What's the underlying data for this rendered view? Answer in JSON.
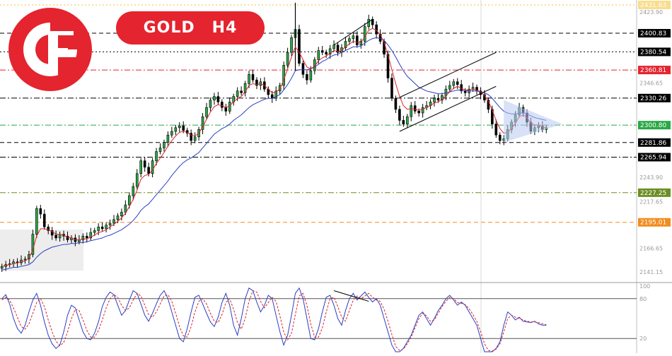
{
  "header": {
    "symbol": "GOLD",
    "timeframe": "H4"
  },
  "brand": {
    "icon": "capital-f-logo-icon",
    "color": "#e4242e"
  },
  "chart_data": {
    "type": "candlestick",
    "instrument": "GOLD",
    "timeframe": "H4",
    "y_axis_ticks": [
      "2423.90",
      "2346.65",
      "2243.90",
      "2217.65",
      "2166.65",
      "2141.15"
    ],
    "levels": [
      {
        "value": "2431.63",
        "color": "#f2c12e",
        "style": "dotted"
      },
      {
        "value": "2400.83",
        "color": "#000000",
        "style": "dashed"
      },
      {
        "value": "2380.54",
        "color": "#000000",
        "style": "dotted"
      },
      {
        "value": "2360.81",
        "color": "#e4242e",
        "style": "dash-dot"
      },
      {
        "value": "2330.26",
        "color": "#000000",
        "style": "dash-dot"
      },
      {
        "value": "2300.80",
        "color": "#2aa845",
        "style": "dash-dot"
      },
      {
        "value": "2281.86",
        "color": "#000000",
        "style": "dashed"
      },
      {
        "value": "2265.94",
        "color": "#000000",
        "style": "dash-dot"
      },
      {
        "value": "2227.25",
        "color": "#6b8e23",
        "style": "dash-dot"
      },
      {
        "value": "2195.01",
        "color": "#f28c1e",
        "style": "dashed"
      }
    ],
    "y_range": [
      2131,
      2437
    ],
    "closes": [
      2147,
      2149,
      2150,
      2152,
      2151,
      2154,
      2155,
      2160,
      2182,
      2210,
      2204,
      2190,
      2186,
      2181,
      2178,
      2182,
      2180,
      2176,
      2178,
      2174,
      2176,
      2180,
      2178,
      2184,
      2186,
      2190,
      2188,
      2192,
      2194,
      2198,
      2202,
      2206,
      2214,
      2224,
      2234,
      2248,
      2262,
      2255,
      2248,
      2262,
      2272,
      2276,
      2282,
      2290,
      2294,
      2298,
      2300,
      2295,
      2292,
      2284,
      2288,
      2296,
      2310,
      2320,
      2328,
      2332,
      2326,
      2320,
      2316,
      2326,
      2332,
      2338,
      2336,
      2346,
      2356,
      2350,
      2344,
      2348,
      2340,
      2334,
      2330,
      2338,
      2344,
      2366,
      2380,
      2396,
      2405,
      2368,
      2356,
      2350,
      2360,
      2372,
      2382,
      2380,
      2378,
      2384,
      2388,
      2380,
      2385,
      2392,
      2395,
      2398,
      2388,
      2392,
      2408,
      2416,
      2410,
      2400,
      2392,
      2378,
      2352,
      2330,
      2318,
      2306,
      2302,
      2310,
      2322,
      2316,
      2314,
      2320,
      2322,
      2326,
      2330,
      2328,
      2333,
      2340,
      2344,
      2348,
      2345,
      2338,
      2336,
      2340,
      2342,
      2338,
      2334,
      2328,
      2318,
      2302,
      2290,
      2284,
      2286,
      2296,
      2304,
      2312,
      2320,
      2314,
      2304,
      2294,
      2298,
      2300,
      2296,
      2298
    ],
    "ma_fast": [
      2147,
      2148,
      2149,
      2150,
      2151,
      2152,
      2153,
      2156,
      2165,
      2180,
      2188,
      2188,
      2187,
      2185,
      2182,
      2182,
      2181,
      2179,
      2178,
      2176,
      2176,
      2177,
      2177,
      2179,
      2181,
      2184,
      2185,
      2187,
      2190,
      2193,
      2196,
      2200,
      2205,
      2212,
      2220,
      2230,
      2242,
      2246,
      2247,
      2252,
      2259,
      2265,
      2271,
      2278,
      2284,
      2289,
      2293,
      2294,
      2293,
      2290,
      2289,
      2292,
      2299,
      2307,
      2315,
      2321,
      2323,
      2322,
      2320,
      2322,
      2326,
      2330,
      2332,
      2337,
      2344,
      2346,
      2345,
      2346,
      2344,
      2340,
      2336,
      2337,
      2340,
      2350,
      2362,
      2375,
      2386,
      2380,
      2372,
      2364,
      2362,
      2365,
      2371,
      2374,
      2376,
      2379,
      2382,
      2381,
      2382,
      2386,
      2389,
      2392,
      2391,
      2391,
      2397,
      2404,
      2406,
      2404,
      2399,
      2391,
      2377,
      2361,
      2346,
      2332,
      2322,
      2318,
      2319,
      2318,
      2317,
      2318,
      2320,
      2322,
      2325,
      2326,
      2329,
      2333,
      2337,
      2341,
      2343,
      2341,
      2339,
      2339,
      2340,
      2339,
      2337,
      2333,
      2327,
      2317,
      2306,
      2297,
      2292,
      2293,
      2297,
      2303,
      2310,
      2312,
      2309,
      2303,
      2301,
      2301,
      2299,
      2298
    ],
    "ma_slow": [
      2143,
      2144,
      2145,
      2146,
      2146,
      2147,
      2148,
      2149,
      2152,
      2157,
      2161,
      2164,
      2166,
      2168,
      2169,
      2170,
      2171,
      2171,
      2172,
      2172,
      2173,
      2173,
      2174,
      2175,
      2176,
      2177,
      2178,
      2180,
      2181,
      2183,
      2185,
      2187,
      2190,
      2193,
      2197,
      2202,
      2208,
      2212,
      2215,
      2220,
      2225,
      2230,
      2235,
      2240,
      2246,
      2251,
      2256,
      2260,
      2263,
      2265,
      2268,
      2271,
      2276,
      2281,
      2286,
      2291,
      2294,
      2297,
      2299,
      2302,
      2306,
      2309,
      2312,
      2316,
      2320,
      2323,
      2325,
      2327,
      2329,
      2330,
      2330,
      2332,
      2334,
      2339,
      2345,
      2352,
      2360,
      2361,
      2361,
      2361,
      2362,
      2364,
      2367,
      2370,
      2372,
      2375,
      2377,
      2378,
      2380,
      2382,
      2384,
      2386,
      2386,
      2387,
      2390,
      2393,
      2395,
      2396,
      2395,
      2393,
      2388,
      2382,
      2375,
      2367,
      2360,
      2354,
      2350,
      2346,
      2342,
      2340,
      2338,
      2337,
      2336,
      2335,
      2335,
      2336,
      2337,
      2338,
      2339,
      2339,
      2338,
      2338,
      2338,
      2338,
      2337,
      2336,
      2334,
      2330,
      2325,
      2320,
      2316,
      2314,
      2313,
      2313,
      2314,
      2314,
      2313,
      2311,
      2309,
      2308,
      2307,
      2306
    ],
    "oscillator": {
      "name": "Stochastic",
      "levels": [
        {
          "value": "80"
        },
        {
          "value": "20"
        }
      ],
      "range_max_label": "100",
      "k": [
        80,
        86,
        72,
        50,
        35,
        28,
        40,
        60,
        78,
        88,
        70,
        45,
        25,
        12,
        5,
        10,
        30,
        55,
        70,
        66,
        48,
        30,
        20,
        18,
        28,
        45,
        68,
        82,
        90,
        86,
        70,
        55,
        62,
        78,
        92,
        88,
        72,
        55,
        46,
        58,
        72,
        85,
        92,
        80,
        60,
        40,
        20,
        15,
        35,
        60,
        82,
        85,
        72,
        58,
        45,
        38,
        52,
        74,
        88,
        70,
        40,
        25,
        50,
        80,
        96,
        92,
        75,
        60,
        70,
        85,
        80,
        55,
        30,
        10,
        25,
        55,
        88,
        96,
        80,
        50,
        20,
        18,
        35,
        60,
        82,
        85,
        70,
        50,
        40,
        62,
        80,
        88,
        78,
        84,
        90,
        82,
        75,
        80,
        70,
        50,
        30,
        10,
        0,
        0,
        5,
        15,
        25,
        40,
        55,
        60,
        50,
        40,
        50,
        62,
        70,
        80,
        85,
        78,
        70,
        75,
        70,
        60,
        50,
        40,
        20,
        0,
        0,
        0,
        5,
        15,
        40,
        60,
        55,
        48,
        52,
        46,
        45,
        44,
        46,
        42,
        40,
        40
      ],
      "d": [
        78,
        82,
        78,
        66,
        52,
        38,
        34,
        42,
        58,
        74,
        80,
        68,
        48,
        30,
        16,
        9,
        14,
        30,
        50,
        64,
        62,
        48,
        32,
        22,
        22,
        32,
        48,
        66,
        80,
        86,
        82,
        70,
        62,
        66,
        78,
        88,
        84,
        70,
        56,
        52,
        60,
        72,
        84,
        86,
        76,
        58,
        38,
        24,
        22,
        38,
        60,
        76,
        80,
        72,
        58,
        46,
        44,
        56,
        74,
        80,
        64,
        44,
        34,
        50,
        76,
        92,
        90,
        76,
        66,
        74,
        82,
        76,
        54,
        30,
        18,
        28,
        56,
        84,
        88,
        70,
        42,
        22,
        22,
        36,
        60,
        80,
        82,
        68,
        52,
        46,
        62,
        78,
        84,
        80,
        84,
        88,
        82,
        78,
        76,
        64,
        46,
        26,
        8,
        2,
        4,
        12,
        22,
        36,
        50,
        58,
        54,
        46,
        48,
        58,
        68,
        76,
        82,
        80,
        74,
        73,
        71,
        65,
        56,
        46,
        30,
        12,
        2,
        1,
        4,
        12,
        30,
        50,
        55,
        52,
        50,
        48,
        46,
        45,
        45,
        44,
        42,
        41
      ]
    }
  }
}
